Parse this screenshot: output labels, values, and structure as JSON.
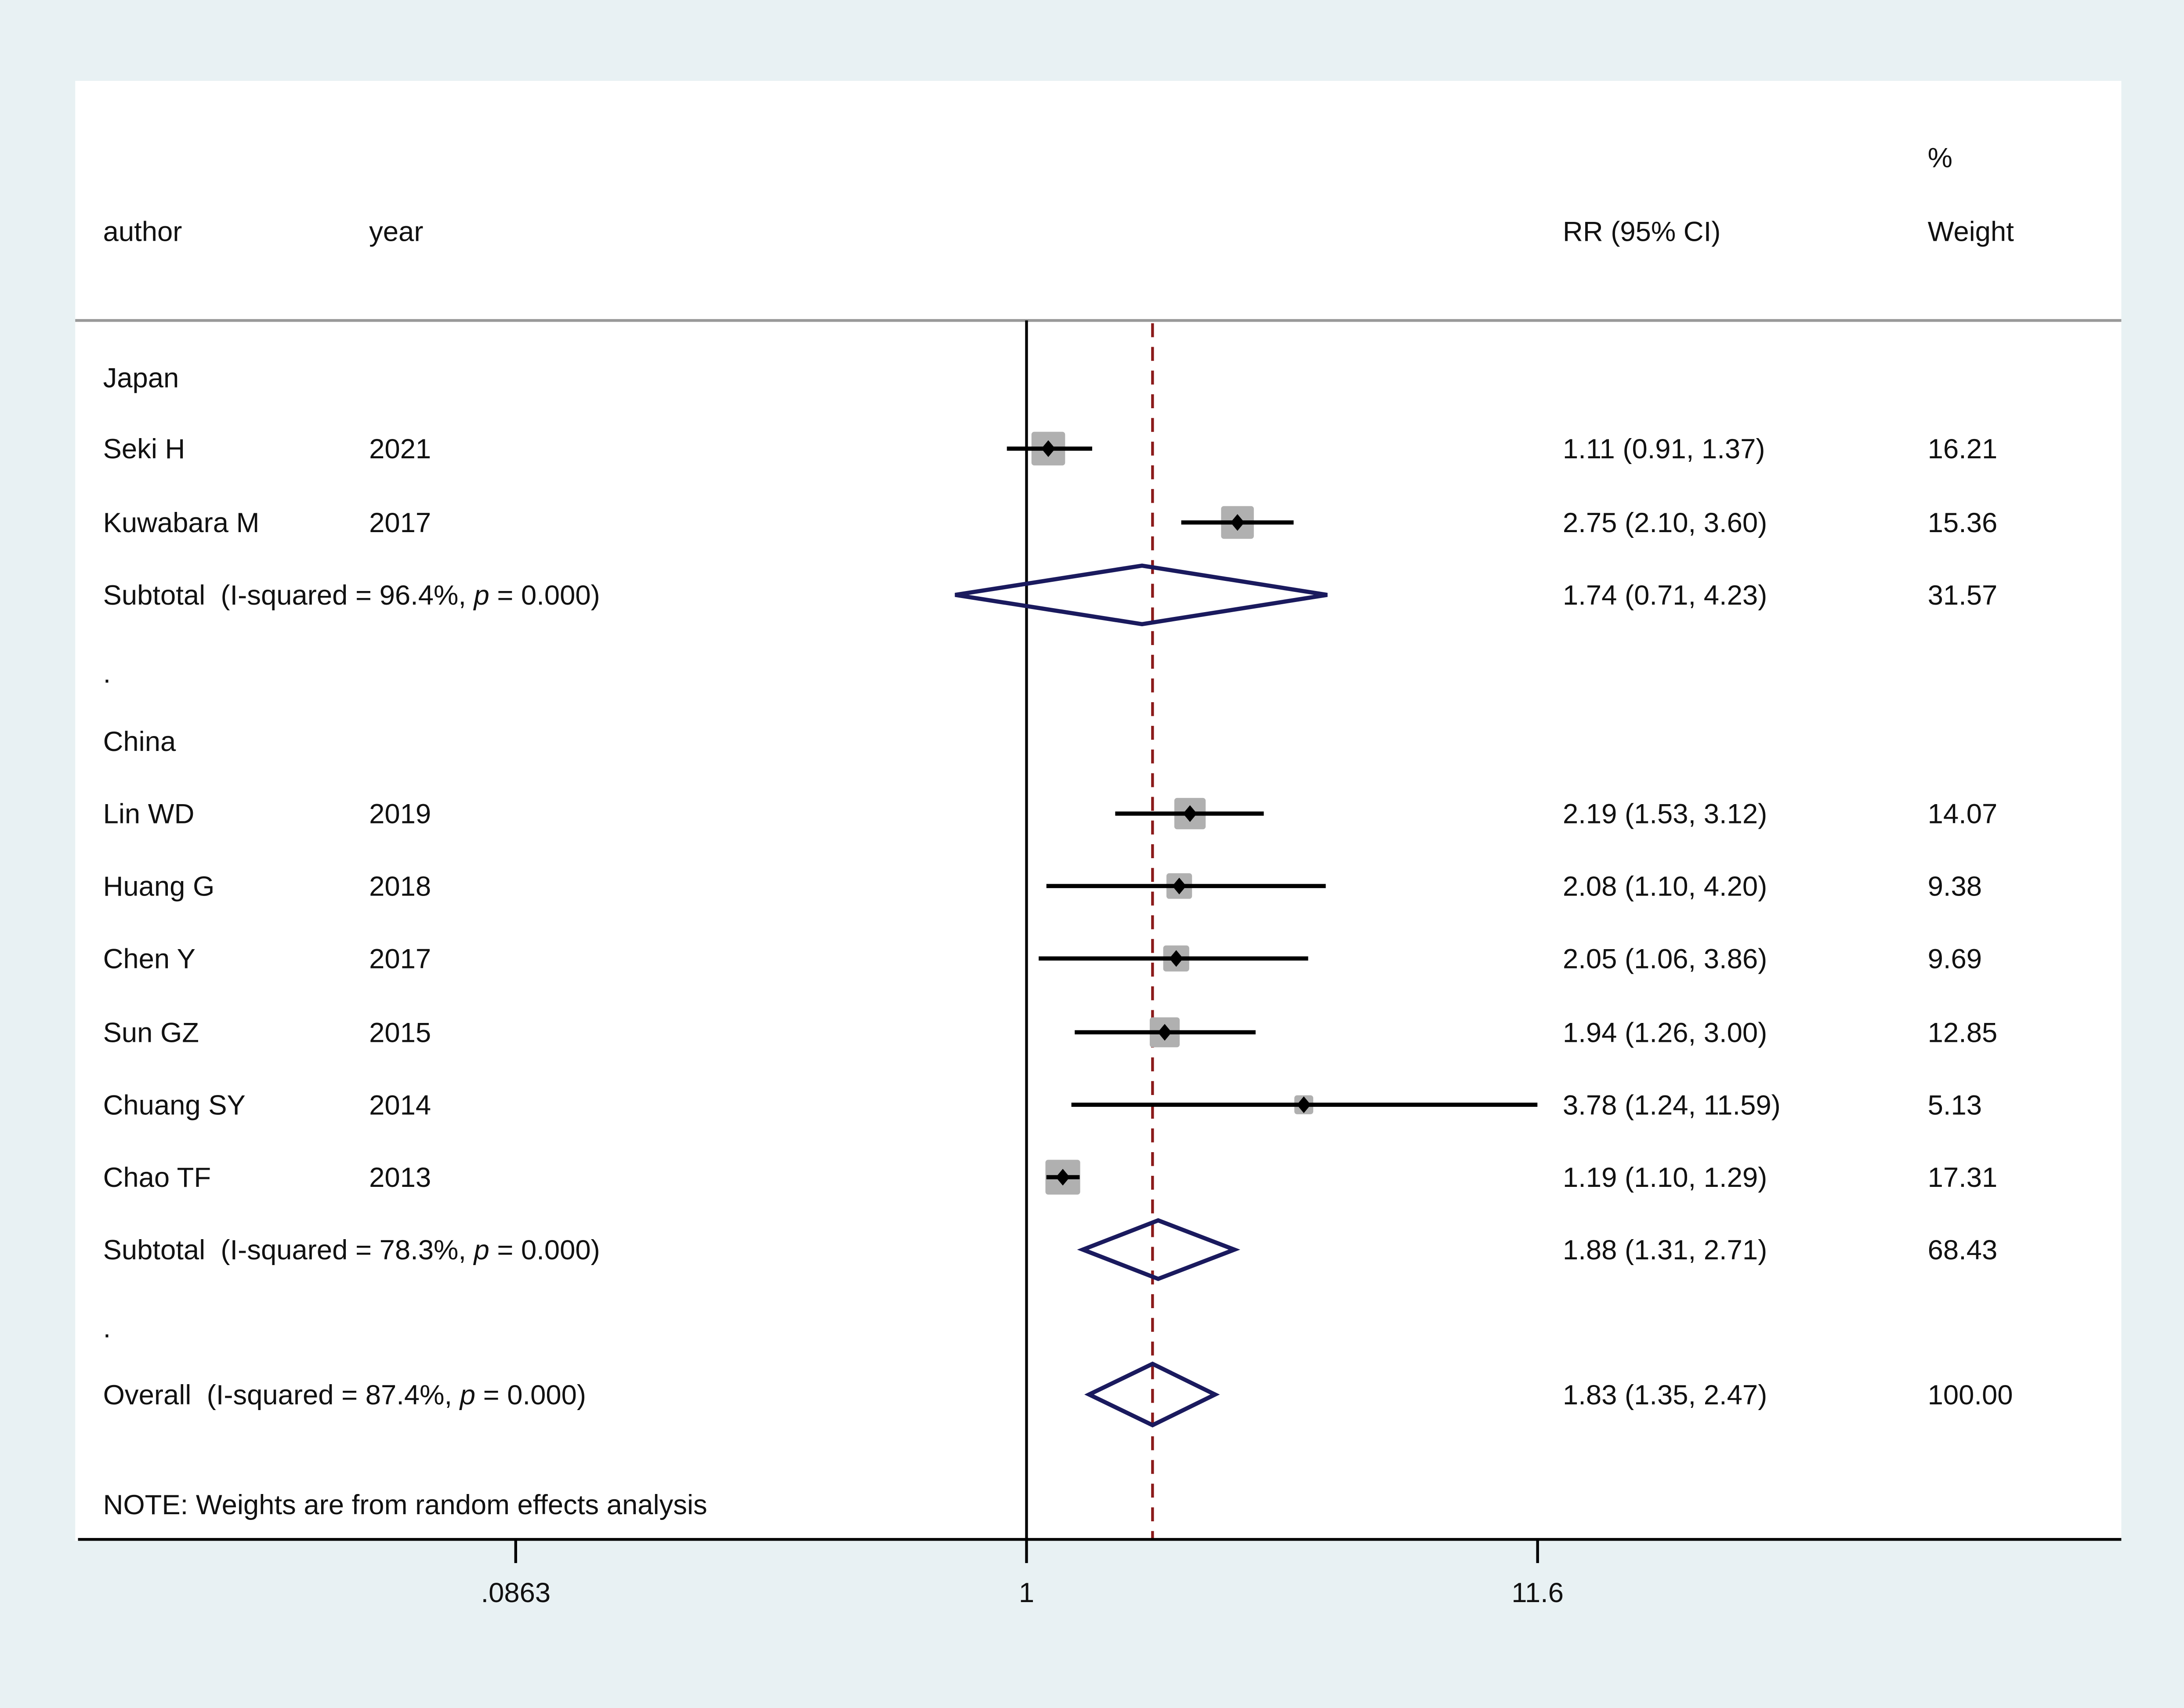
{
  "chart_data": {
    "type": "forest",
    "scale": "log",
    "headers": {
      "author": "author",
      "year": "year",
      "effect": "RR (95% CI)",
      "weight_top": "%",
      "weight": "Weight"
    },
    "x_ticks": [
      {
        "value": 0.0863,
        "label": ".0863"
      },
      {
        "value": 1,
        "label": "1"
      },
      {
        "value": 11.6,
        "label": "11.6"
      }
    ],
    "xlim": [
      0.0863,
      11.6
    ],
    "null_line": 1,
    "overall_line": 1.83,
    "rows": [
      {
        "kind": "group",
        "label": "Japan"
      },
      {
        "kind": "study",
        "author": "Seki H",
        "year": "2021",
        "rr": 1.11,
        "lo": 0.91,
        "hi": 1.37,
        "ci_text": "1.11 (0.91, 1.37)",
        "weight": "16.21"
      },
      {
        "kind": "study",
        "author": "Kuwabara M",
        "year": "2017",
        "rr": 2.75,
        "lo": 2.1,
        "hi": 3.6,
        "ci_text": "2.75 (2.10, 3.60)",
        "weight": "15.36"
      },
      {
        "kind": "subtotal",
        "label": "Subtotal  (I-squared = 96.4%, ",
        "p": "p",
        "p_rest": " = 0.000)",
        "rr": 1.74,
        "lo": 0.71,
        "hi": 4.23,
        "ci_text": "1.74 (0.71, 4.23)",
        "weight": "31.57"
      },
      {
        "kind": "spacer",
        "label": "."
      },
      {
        "kind": "group",
        "label": "China"
      },
      {
        "kind": "study",
        "author": "Lin WD",
        "year": "2019",
        "rr": 2.19,
        "lo": 1.53,
        "hi": 3.12,
        "ci_text": "2.19 (1.53, 3.12)",
        "weight": "14.07"
      },
      {
        "kind": "study",
        "author": "Huang G",
        "year": "2018",
        "rr": 2.08,
        "lo": 1.1,
        "hi": 4.2,
        "ci_text": "2.08 (1.10, 4.20)",
        "weight": "9.38"
      },
      {
        "kind": "study",
        "author": "Chen Y",
        "year": "2017",
        "rr": 2.05,
        "lo": 1.06,
        "hi": 3.86,
        "ci_text": "2.05 (1.06, 3.86)",
        "weight": "9.69"
      },
      {
        "kind": "study",
        "author": "Sun GZ",
        "year": "2015",
        "rr": 1.94,
        "lo": 1.26,
        "hi": 3.0,
        "ci_text": "1.94 (1.26, 3.00)",
        "weight": "12.85"
      },
      {
        "kind": "study",
        "author": "Chuang SY",
        "year": "2014",
        "rr": 3.78,
        "lo": 1.24,
        "hi": 11.59,
        "ci_text": "3.78 (1.24, 11.59)",
        "weight": "5.13"
      },
      {
        "kind": "study",
        "author": "Chao TF",
        "year": "2013",
        "rr": 1.19,
        "lo": 1.1,
        "hi": 1.29,
        "ci_text": "1.19 (1.10, 1.29)",
        "weight": "17.31"
      },
      {
        "kind": "subtotal",
        "label": "Subtotal  (I-squared = 78.3%, ",
        "p": "p",
        "p_rest": " = 0.000)",
        "rr": 1.88,
        "lo": 1.31,
        "hi": 2.71,
        "ci_text": "1.88 (1.31, 2.71)",
        "weight": "68.43"
      },
      {
        "kind": "spacer",
        "label": "."
      },
      {
        "kind": "overall",
        "label": "Overall  (I-squared = 87.4%, ",
        "p": "p",
        "p_rest": " = 0.000)",
        "rr": 1.83,
        "lo": 1.35,
        "hi": 2.47,
        "ci_text": "1.83 (1.35, 2.47)",
        "weight": "100.00"
      }
    ],
    "note": "NOTE: Weights are from random effects analysis",
    "colors": {
      "background": "#e8f1f3",
      "panel": "#ffffff",
      "diamond": "#1a1a5e",
      "overall_line": "#8b1a1a",
      "box": "#b0b0b0"
    }
  }
}
